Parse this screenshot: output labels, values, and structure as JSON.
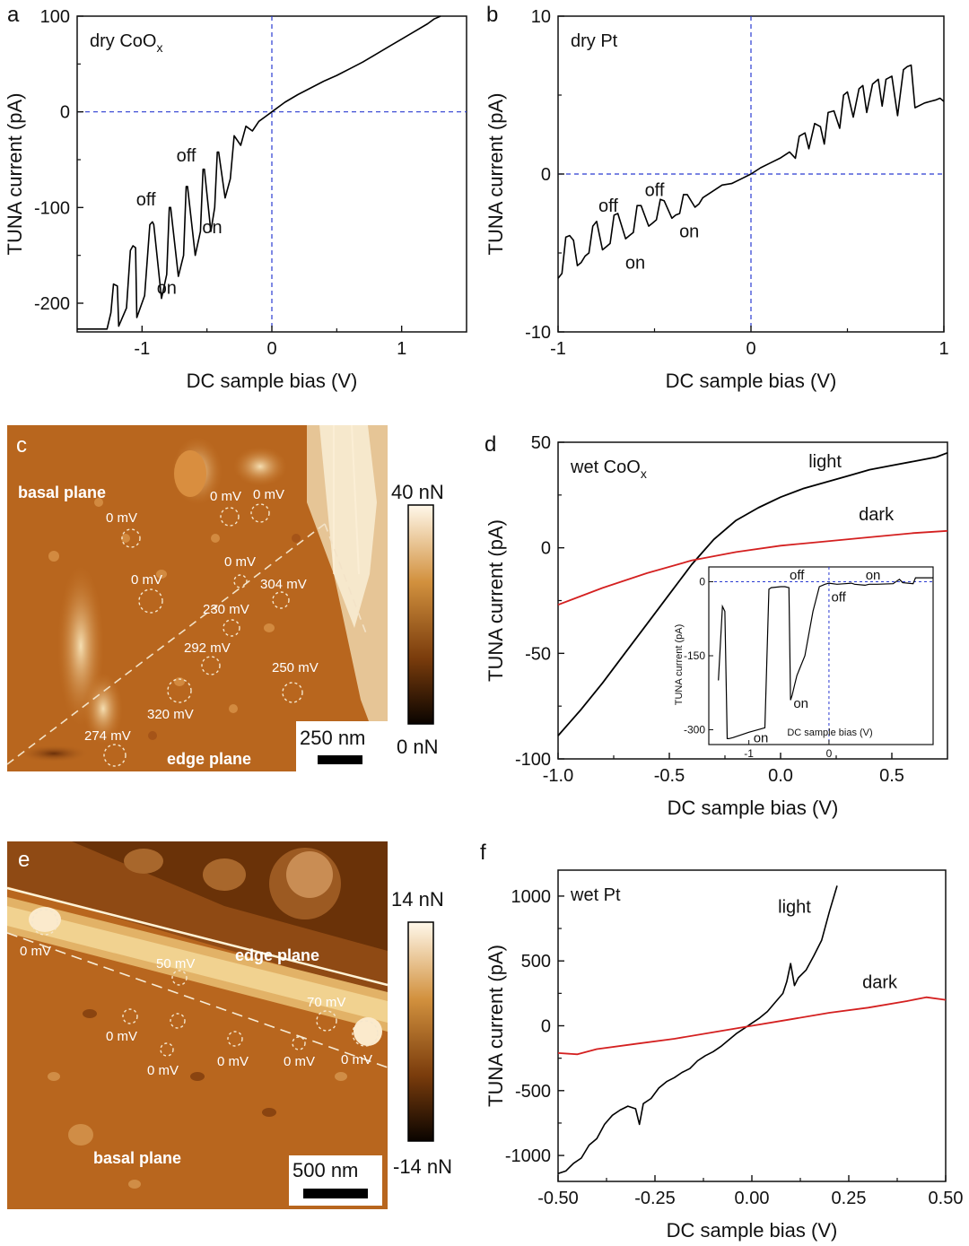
{
  "colors": {
    "axis": "#111111",
    "black_curve": "#000000",
    "red_curve": "#d42020",
    "zero_line": "#2a3bd1",
    "map_base": "#b8661e",
    "map_light": "#f2dcb0",
    "map_dark": "#5a2a06"
  },
  "chart_data": [
    {
      "panel": "a",
      "type": "line",
      "annotation_main": "dry CoO",
      "annotation_sub": "x",
      "xlabel": "DC sample bias (V)",
      "ylabel": "TUNA current (pA)",
      "xlim": [
        -1.5,
        1.5
      ],
      "ylim": [
        -230,
        100
      ],
      "xticks": [
        -1,
        0,
        1
      ],
      "xtick_labels": [
        "-1",
        "0",
        "1"
      ],
      "yticks": [
        -200,
        -100,
        0,
        100
      ],
      "ytick_labels": [
        "-200",
        "-100",
        "0",
        "100"
      ],
      "zero_lines": true,
      "labels": [
        {
          "text": "off",
          "x": -0.66,
          "y": -52
        },
        {
          "text": "off",
          "x": -0.97,
          "y": -98
        },
        {
          "text": "on",
          "x": -0.46,
          "y": -127
        },
        {
          "text": "on",
          "x": -0.81,
          "y": -190
        }
      ],
      "series": [
        {
          "color_key": "black_curve",
          "width": 1.6,
          "x": [
            -1.5,
            -1.32,
            -1.27,
            -1.24,
            -1.22,
            -1.19,
            -1.18,
            -1.12,
            -1.09,
            -1.07,
            -1.05,
            -1.04,
            -0.98,
            -0.94,
            -0.92,
            -0.91,
            -0.85,
            -0.81,
            -0.79,
            -0.78,
            -0.72,
            -0.68,
            -0.66,
            -0.65,
            -0.59,
            -0.55,
            -0.53,
            -0.52,
            -0.47,
            -0.44,
            -0.42,
            -0.41,
            -0.36,
            -0.32,
            -0.29,
            -0.24,
            -0.2,
            -0.15,
            -0.1,
            -0.05,
            0,
            0.1,
            0.2,
            0.3,
            0.4,
            0.5,
            0.6,
            0.7,
            0.8,
            0.9,
            1.0,
            1.1,
            1.2,
            1.25,
            1.3
          ],
          "y": [
            -227,
            -227,
            -227,
            -210,
            -180,
            -182,
            -224,
            -205,
            -145,
            -140,
            -142,
            -215,
            -192,
            -118,
            -115,
            -118,
            -195,
            -170,
            -100,
            -100,
            -172,
            -150,
            -78,
            -78,
            -150,
            -125,
            -60,
            -60,
            -125,
            -100,
            -42,
            -42,
            -90,
            -70,
            -25,
            -35,
            -15,
            -20,
            -10,
            -5,
            0,
            10,
            18,
            25,
            32,
            38,
            45,
            52,
            60,
            68,
            76,
            84,
            92,
            97,
            100
          ]
        }
      ]
    },
    {
      "panel": "b",
      "type": "line",
      "annotation_main": "dry Pt",
      "xlabel": "DC sample bias (V)",
      "ylabel": "TUNA current (pA)",
      "xlim": [
        -1,
        1
      ],
      "ylim": [
        -10,
        10
      ],
      "xticks": [
        -1,
        0,
        1
      ],
      "xtick_labels": [
        "-1",
        "0",
        "1"
      ],
      "yticks": [
        -10,
        0,
        10
      ],
      "ytick_labels": [
        "-10",
        "0",
        "10"
      ],
      "zero_lines": true,
      "labels": [
        {
          "text": "off",
          "x": -0.74,
          "y": -2.4
        },
        {
          "text": "off",
          "x": -0.5,
          "y": -1.4
        },
        {
          "text": "on",
          "x": -0.6,
          "y": -6.0
        },
        {
          "text": "on",
          "x": -0.32,
          "y": -4.0
        }
      ],
      "series": [
        {
          "color_key": "black_curve",
          "width": 1.6,
          "x": [
            -1.0,
            -0.98,
            -0.96,
            -0.94,
            -0.92,
            -0.9,
            -0.88,
            -0.86,
            -0.84,
            -0.82,
            -0.8,
            -0.77,
            -0.75,
            -0.73,
            -0.71,
            -0.69,
            -0.65,
            -0.63,
            -0.61,
            -0.59,
            -0.57,
            -0.53,
            -0.51,
            -0.49,
            -0.47,
            -0.45,
            -0.41,
            -0.39,
            -0.37,
            -0.35,
            -0.33,
            -0.29,
            -0.27,
            -0.25,
            -0.2,
            -0.15,
            -0.1,
            -0.05,
            0.0,
            0.05,
            0.1,
            0.15,
            0.2,
            0.23,
            0.25,
            0.28,
            0.3,
            0.33,
            0.36,
            0.38,
            0.4,
            0.43,
            0.46,
            0.48,
            0.5,
            0.53,
            0.56,
            0.58,
            0.6,
            0.63,
            0.66,
            0.68,
            0.7,
            0.73,
            0.76,
            0.79,
            0.81,
            0.83,
            0.85,
            0.9,
            0.93,
            0.96,
            0.98,
            1.0
          ],
          "y": [
            -6.6,
            -6.3,
            -4.0,
            -3.9,
            -4.2,
            -5.8,
            -5.6,
            -5.2,
            -5.0,
            -3.3,
            -3.0,
            -4.8,
            -4.6,
            -4.4,
            -2.6,
            -2.5,
            -4.1,
            -3.9,
            -3.7,
            -2.0,
            -2.0,
            -3.3,
            -3.1,
            -2.9,
            -1.6,
            -1.7,
            -2.8,
            -2.6,
            -2.5,
            -1.3,
            -1.3,
            -2.1,
            -1.9,
            -1.5,
            -1.1,
            -0.7,
            -0.6,
            -0.3,
            0.0,
            0.4,
            0.7,
            1.0,
            1.4,
            1.0,
            2.4,
            2.6,
            1.6,
            3.2,
            3.0,
            1.9,
            3.9,
            4.0,
            2.9,
            5.0,
            5.2,
            3.6,
            5.4,
            5.6,
            3.9,
            5.7,
            6.0,
            4.3,
            6.0,
            6.2,
            3.7,
            6.6,
            6.8,
            6.9,
            4.2,
            4.5,
            4.6,
            4.7,
            4.8,
            4.6
          ]
        }
      ]
    },
    {
      "panel": "d",
      "type": "line",
      "annotation_main": "wet CoO",
      "annotation_sub": "x",
      "xlabel": "DC sample bias (V)",
      "ylabel": "TUNA current (pA)",
      "xlim": [
        -1.0,
        0.75
      ],
      "ylim": [
        -100,
        50
      ],
      "xticks": [
        -1.0,
        -0.5,
        0.0,
        0.5
      ],
      "xtick_labels": [
        "-1.0",
        "-0.5",
        "0.0",
        "0.5"
      ],
      "yticks": [
        -100,
        -50,
        0,
        50
      ],
      "ytick_labels": [
        "-100",
        "-50",
        "0",
        "50"
      ],
      "zero_lines": false,
      "labels": [
        {
          "text": "light",
          "x": 0.2,
          "y": 38
        },
        {
          "text": "dark",
          "x": 0.43,
          "y": 13
        }
      ],
      "series": [
        {
          "name": "light",
          "color_key": "black_curve",
          "width": 1.8,
          "x": [
            -1.0,
            -0.9,
            -0.8,
            -0.7,
            -0.6,
            -0.5,
            -0.45,
            -0.4,
            -0.35,
            -0.3,
            -0.2,
            -0.1,
            0.0,
            0.1,
            0.2,
            0.3,
            0.4,
            0.5,
            0.6,
            0.7,
            0.75
          ],
          "y": [
            -89,
            -77,
            -64,
            -50,
            -36,
            -22,
            -15,
            -8,
            -2,
            4,
            13,
            19,
            24,
            28,
            31,
            34,
            37,
            39,
            41,
            43,
            45
          ]
        },
        {
          "name": "dark",
          "color_key": "red_curve",
          "width": 1.8,
          "x": [
            -1.0,
            -0.8,
            -0.6,
            -0.4,
            -0.2,
            0.0,
            0.2,
            0.4,
            0.6,
            0.75
          ],
          "y": [
            -27,
            -19,
            -12,
            -6,
            -2,
            1,
            3,
            5,
            7,
            8
          ]
        }
      ],
      "inset": {
        "ylabel": "TUNA current (pA)",
        "xlabel": "DC sample bias (V)",
        "xlim": [
          -1.5,
          1.3
        ],
        "ylim": [
          -330,
          30
        ],
        "xticks": [
          -1,
          0
        ],
        "xtick_labels": [
          "-1",
          "0"
        ],
        "yticks": [
          0,
          -150,
          -300
        ],
        "ytick_labels": [
          "0",
          "-150",
          "-300"
        ],
        "labels": [
          {
            "text": "off",
            "x": -0.4,
            "y": 5
          },
          {
            "text": "off",
            "x": 0.12,
            "y": -40
          },
          {
            "text": "on",
            "x": 0.55,
            "y": 5
          },
          {
            "text": "on",
            "x": -0.35,
            "y": -255
          },
          {
            "text": "on",
            "x": -0.85,
            "y": -325
          }
        ],
        "series": [
          {
            "color_key": "black_curve",
            "width": 1.2,
            "x": [
              -1.38,
              -1.33,
              -1.3,
              -1.27,
              -1.25,
              -1.2,
              -1.0,
              -0.8,
              -0.75,
              -0.72,
              -0.6,
              -0.55,
              -0.5,
              -0.48,
              -0.46,
              -0.43,
              -0.4,
              -0.3,
              -0.2,
              -0.12,
              -0.05,
              0.0,
              0.1,
              0.2,
              0.28,
              0.32,
              0.45,
              0.5,
              0.6,
              0.8,
              0.88,
              0.92,
              1.05,
              1.08,
              1.1,
              1.3
            ],
            "y": [
              -200,
              -50,
              -60,
              -318,
              -318,
              -316,
              -305,
              -296,
              -15,
              -12,
              -10,
              -10,
              -12,
              -240,
              -230,
              -210,
              -190,
              -150,
              -60,
              -10,
              -5,
              -3,
              -5,
              -4,
              -3,
              -5,
              -7,
              -5,
              -5,
              -4,
              5,
              -2,
              -4,
              8,
              8,
              8
            ]
          }
        ]
      }
    },
    {
      "panel": "f",
      "type": "line",
      "annotation_main": "wet Pt",
      "xlabel": "DC sample bias (V)",
      "ylabel": "TUNA current (pA)",
      "xlim": [
        -0.5,
        0.5
      ],
      "ylim": [
        -1200,
        1200
      ],
      "xticks": [
        -0.5,
        -0.25,
        0.0,
        0.25,
        0.5
      ],
      "xtick_labels": [
        "-0.50",
        "-0.25",
        "0.00",
        "0.25",
        "0.50"
      ],
      "yticks": [
        -1000,
        -500,
        0,
        500,
        1000
      ],
      "ytick_labels": [
        "-1000",
        "-500",
        "0",
        "500",
        "1000"
      ],
      "zero_lines": false,
      "labels": [
        {
          "text": "light",
          "x": 0.11,
          "y": 870
        },
        {
          "text": "dark",
          "x": 0.33,
          "y": 290
        }
      ],
      "series": [
        {
          "name": "light",
          "color_key": "black_curve",
          "width": 1.6,
          "x": [
            -0.5,
            -0.48,
            -0.46,
            -0.44,
            -0.42,
            -0.4,
            -0.38,
            -0.36,
            -0.34,
            -0.32,
            -0.3,
            -0.29,
            -0.28,
            -0.26,
            -0.24,
            -0.22,
            -0.2,
            -0.18,
            -0.16,
            -0.14,
            -0.12,
            -0.1,
            -0.08,
            -0.06,
            -0.04,
            -0.02,
            0.0,
            0.02,
            0.04,
            0.06,
            0.08,
            0.09,
            0.1,
            0.11,
            0.12,
            0.14,
            0.16,
            0.18,
            0.2,
            0.22
          ],
          "y": [
            -1140,
            -1120,
            -1060,
            -1020,
            -920,
            -870,
            -760,
            -690,
            -650,
            -620,
            -640,
            -760,
            -600,
            -560,
            -480,
            -430,
            -400,
            -360,
            -330,
            -270,
            -230,
            -200,
            -160,
            -110,
            -60,
            -20,
            20,
            60,
            110,
            180,
            250,
            340,
            480,
            310,
            370,
            430,
            540,
            660,
            880,
            1080
          ]
        },
        {
          "name": "dark",
          "color_key": "red_curve",
          "width": 1.8,
          "x": [
            -0.5,
            -0.45,
            -0.4,
            -0.3,
            -0.2,
            -0.1,
            0.0,
            0.1,
            0.2,
            0.3,
            0.4,
            0.45,
            0.5
          ],
          "y": [
            -210,
            -220,
            -180,
            -140,
            -100,
            -50,
            0,
            50,
            100,
            140,
            190,
            220,
            200
          ]
        }
      ]
    }
  ],
  "maps": [
    {
      "panel": "c",
      "colorbar_top": "40 nN",
      "colorbar_bottom": "0 nN",
      "scale_bar": "250 nm",
      "plane_labels": [
        "basal plane",
        "edge plane"
      ],
      "annotations": [
        "0 mV",
        "0 mV",
        "0 mV",
        "0 mV",
        "0 mV",
        "304 mV",
        "230 mV",
        "292 mV",
        "250 mV",
        "320 mV",
        "274 mV"
      ]
    },
    {
      "panel": "e",
      "colorbar_top": "14 nN",
      "colorbar_bottom": "-14 nN",
      "scale_bar": "500 nm",
      "plane_labels": [
        "edge plane",
        "basal plane"
      ],
      "annotations": [
        "0 mV",
        "50 mV",
        "70 mV",
        "0 mV",
        "0 mV",
        "0 mV",
        "0 mV",
        "0 mV"
      ]
    }
  ]
}
